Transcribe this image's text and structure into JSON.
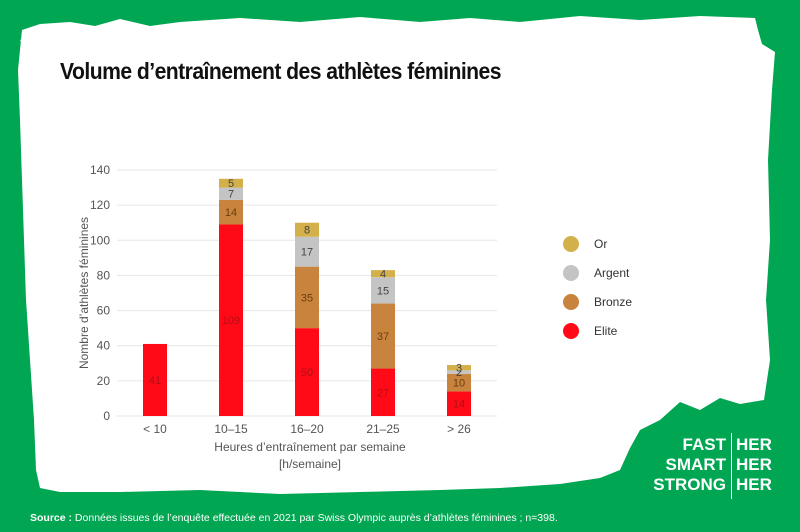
{
  "title": "Volume d’entraînement des athlètes féminines",
  "colors": {
    "background": "#00a651",
    "panel": "#ffffff",
    "Or": "#d4b04a",
    "Argent": "#c4c4c4",
    "Bronze": "#c8843c",
    "Elite": "#ff0a16",
    "gridline": "#e6e6e6",
    "tick_text": "#555555"
  },
  "chart_data": {
    "type": "bar",
    "stacked": true,
    "title": "Volume d’entraînement des athlètes féminines",
    "xlabel": "Heures d’entraînement par semaine",
    "xlabel_unit": "[h/semaine]",
    "ylabel": "Nombre d’athlètes féminines",
    "ylim": [
      0,
      140
    ],
    "yticks": [
      0,
      20,
      40,
      60,
      80,
      100,
      120,
      140
    ],
    "grid": true,
    "legend_position": "right",
    "categories": [
      "< 10",
      "10–15",
      "16–20",
      "21–25",
      "> 26"
    ],
    "series": [
      {
        "name": "Elite",
        "values": [
          41,
          109,
          50,
          27,
          14
        ]
      },
      {
        "name": "Bronze",
        "values": [
          0,
          14,
          35,
          37,
          10
        ]
      },
      {
        "name": "Argent",
        "values": [
          0,
          7,
          17,
          15,
          2
        ]
      },
      {
        "name": "Or",
        "values": [
          0,
          5,
          8,
          4,
          3
        ]
      }
    ],
    "legend": [
      "Or",
      "Argent",
      "Bronze",
      "Elite"
    ]
  },
  "brand": {
    "rows": [
      {
        "left": "FAST",
        "right": "HER"
      },
      {
        "left": "SMART",
        "right": "HER"
      },
      {
        "left": "STRONG",
        "right": "HER"
      }
    ]
  },
  "source": {
    "label": "Source :",
    "text": " Données issues de l’enquête effectuée en 2021 par Swiss Olympic auprès d’athlètes féminines ; n=398."
  }
}
